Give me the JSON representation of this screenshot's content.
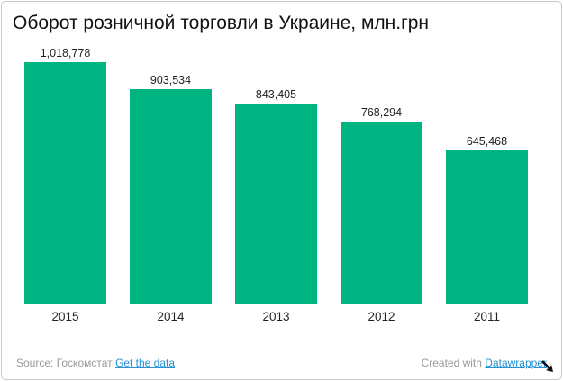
{
  "title": "Оборот розничной торговли в Украине, млн.грн",
  "chart_data": {
    "type": "bar",
    "categories": [
      "2015",
      "2014",
      "2013",
      "2012",
      "2011"
    ],
    "values": [
      1018778,
      903534,
      843405,
      768294,
      645468
    ],
    "value_labels": [
      "1,018,778",
      "903,534",
      "843,405",
      "768,294",
      "645,468"
    ],
    "title": "Оборот розничной торговли в Украине, млн.грн",
    "xlabel": "",
    "ylabel": "",
    "ylim": [
      0,
      1018778
    ],
    "grid": false,
    "legend": false,
    "bar_color": "#00b482"
  },
  "footer": {
    "source_label": "Source: Госкомстат",
    "source_link": "Get the data",
    "credit_label": "Created with",
    "credit_link": "Datawrapper",
    "text_color": "#999999",
    "link_color": "#2592d4"
  },
  "card": {
    "background": "#ffffff",
    "border_color": "#c9c9c9"
  }
}
